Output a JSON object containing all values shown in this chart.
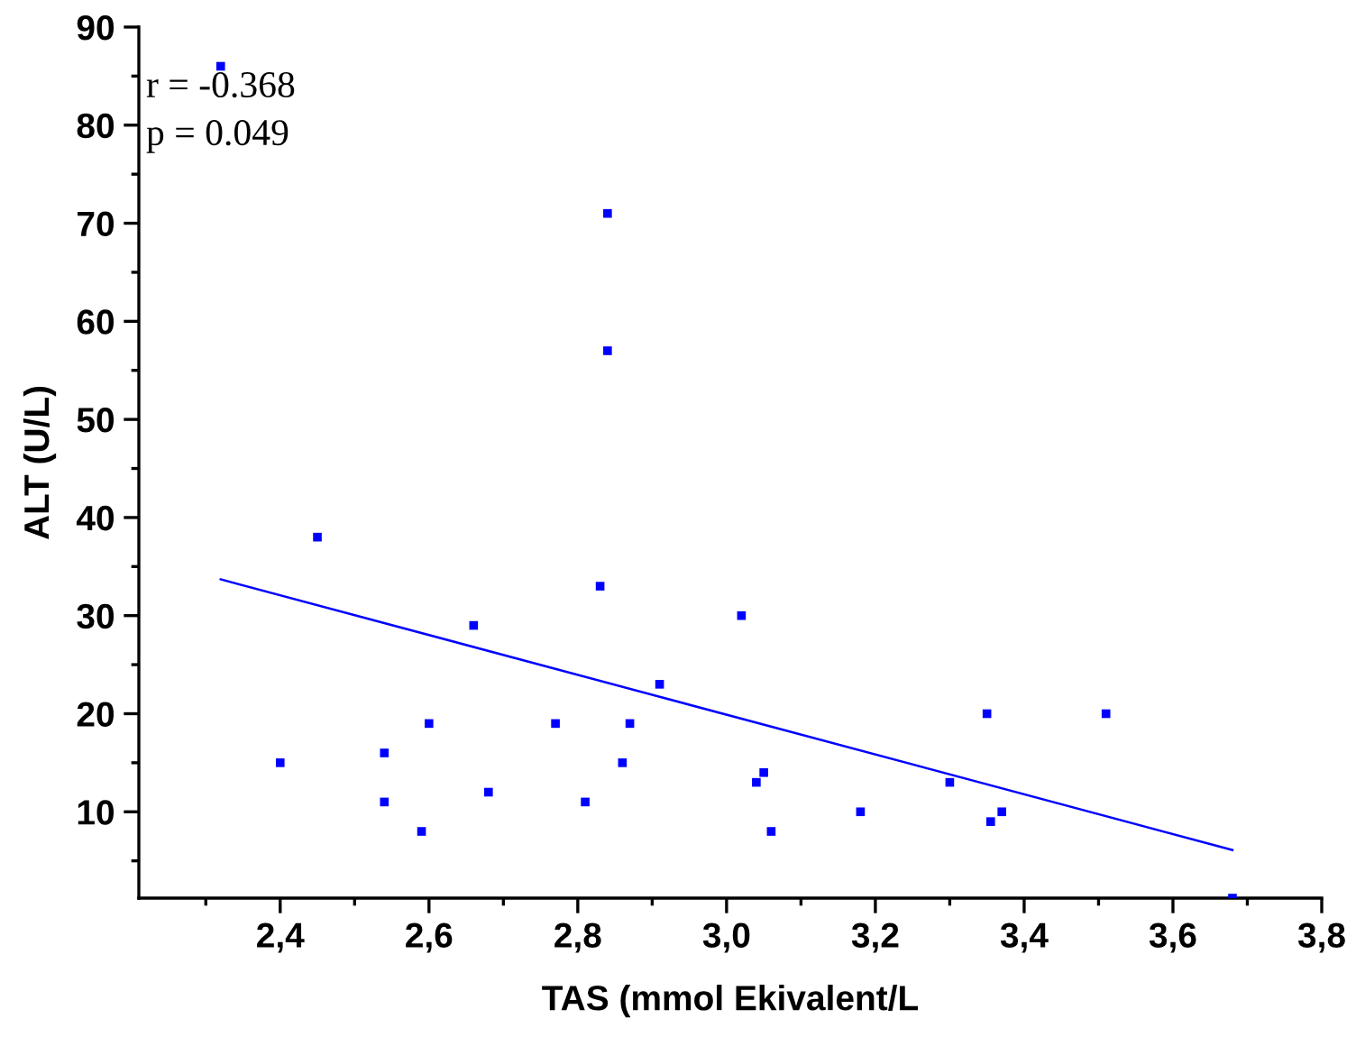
{
  "chart_data": {
    "type": "scatter",
    "xlabel": "TAS (mmol Ekivalent/L",
    "ylabel": "ALT (U/L)",
    "annotations": [
      "r = -0.368",
      "p = 0.049"
    ],
    "xlim": [
      2.21,
      3.8
    ],
    "ylim": [
      1.2,
      90
    ],
    "xticks": [
      {
        "value": 2.4,
        "label": "2,4"
      },
      {
        "value": 2.6,
        "label": "2,6"
      },
      {
        "value": 2.8,
        "label": "2,8"
      },
      {
        "value": 3.0,
        "label": "3,0"
      },
      {
        "value": 3.2,
        "label": "3,2"
      },
      {
        "value": 3.4,
        "label": "3,4"
      },
      {
        "value": 3.6,
        "label": "3,6"
      },
      {
        "value": 3.8,
        "label": "3,8"
      }
    ],
    "yticks": [
      10,
      20,
      30,
      40,
      50,
      60,
      70,
      80,
      90
    ],
    "grid": false,
    "series": [
      {
        "color": "#0000ff",
        "marker": "square",
        "x": [
          2.32,
          2.84,
          2.84,
          2.45,
          2.83,
          2.66,
          3.02,
          2.91,
          2.4,
          2.54,
          2.54,
          2.6,
          2.77,
          2.87,
          2.86,
          2.68,
          2.81,
          2.59,
          3.04,
          3.05,
          3.06,
          3.18,
          3.3,
          3.35,
          3.355,
          3.37,
          3.51,
          3.68
        ],
        "values": [
          86,
          71,
          57,
          38,
          33,
          29,
          30,
          23,
          15,
          16,
          11,
          19,
          19,
          19,
          15,
          12,
          11,
          8,
          13,
          14,
          8,
          10,
          13,
          20,
          9,
          10,
          20,
          1.2
        ]
      },
      {
        "type": "line",
        "marker": "none",
        "color": "#0000ff",
        "x": [
          2.32,
          3.68
        ],
        "values": [
          33.7,
          6.1
        ]
      }
    ]
  }
}
